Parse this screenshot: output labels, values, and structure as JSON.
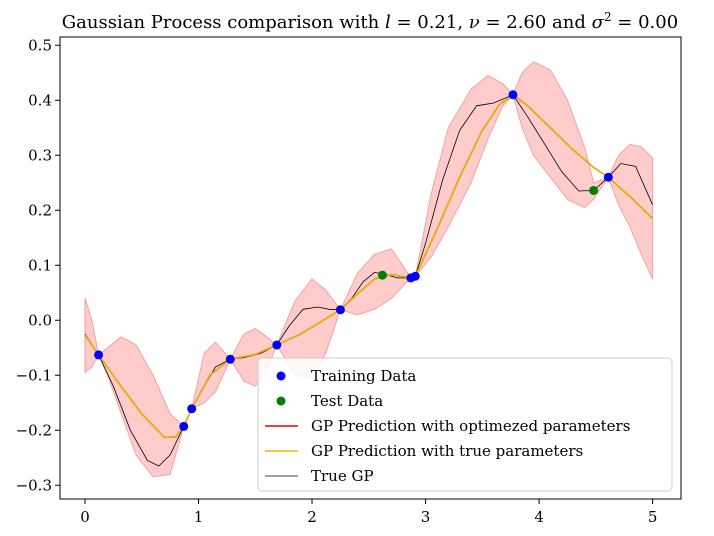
{
  "chart_data": {
    "type": "line",
    "title": "Gaussian Process comparison with l = 0.21, ν = 2.60 and σ² = 0.00",
    "title_parts": {
      "prefix": "Gaussian Process comparison with ",
      "l_symbol": "l",
      "l_value": " = 0.21, ",
      "nu_symbol": "ν",
      "nu_value": " = 2.60 and ",
      "sigma_symbol": "σ",
      "sigma_sup": "2",
      "sigma_value": " = 0.00"
    },
    "xlabel": "",
    "ylabel": "",
    "xlim": [
      -0.22,
      5.25
    ],
    "ylim": [
      -0.325,
      0.515
    ],
    "xticks": [
      0,
      1,
      2,
      3,
      4,
      5
    ],
    "yticks": [
      -0.3,
      -0.2,
      -0.1,
      0.0,
      0.1,
      0.2,
      0.3,
      0.4,
      0.5
    ],
    "ytick_labels": [
      "−0.3",
      "−0.2",
      "−0.1",
      "0.0",
      "0.1",
      "0.2",
      "0.3",
      "0.4",
      "0.5"
    ],
    "grid": false,
    "legend_position": "lower-right",
    "colors": {
      "training": "#0000ff",
      "test": "#008000",
      "optimized": "#dd0000",
      "true_params": "#e6b800",
      "true_gp": "#000000",
      "band": "#ffcccc",
      "band_edge": "#f5a0a0"
    },
    "series": [
      {
        "name": "Training Data",
        "kind": "scatter",
        "x": [
          0.12,
          0.87,
          0.94,
          1.28,
          1.69,
          2.25,
          2.87,
          2.91,
          3.77,
          4.61
        ],
        "y": [
          -0.063,
          -0.193,
          -0.161,
          -0.071,
          -0.045,
          0.019,
          0.077,
          0.08,
          0.41,
          0.26
        ]
      },
      {
        "name": "Test Data",
        "kind": "scatter",
        "x": [
          2.62,
          4.48
        ],
        "y": [
          0.082,
          0.236
        ]
      },
      {
        "name": "GP Prediction with optimezed parameters",
        "kind": "line",
        "x": [
          0,
          0.12,
          0.3,
          0.5,
          0.7,
          0.8,
          0.87,
          0.94,
          1.1,
          1.28,
          1.5,
          1.69,
          1.9,
          2.1,
          2.25,
          2.4,
          2.55,
          2.7,
          2.87,
          2.91,
          3.1,
          3.3,
          3.5,
          3.65,
          3.77,
          3.9,
          4.1,
          4.3,
          4.48,
          4.61,
          4.8,
          5.0
        ],
        "y": [
          -0.027,
          -0.063,
          -0.115,
          -0.17,
          -0.213,
          -0.212,
          -0.193,
          -0.161,
          -0.1,
          -0.071,
          -0.062,
          -0.045,
          -0.025,
          0.0,
          0.019,
          0.048,
          0.075,
          0.083,
          0.077,
          0.08,
          0.165,
          0.26,
          0.345,
          0.392,
          0.41,
          0.39,
          0.35,
          0.31,
          0.278,
          0.26,
          0.225,
          0.185
        ]
      },
      {
        "name": "GP Prediction with true parameters",
        "kind": "line",
        "x": [
          0,
          0.12,
          0.3,
          0.5,
          0.7,
          0.8,
          0.87,
          0.94,
          1.1,
          1.28,
          1.5,
          1.69,
          1.9,
          2.1,
          2.25,
          2.4,
          2.55,
          2.7,
          2.87,
          2.91,
          3.1,
          3.3,
          3.5,
          3.65,
          3.77,
          3.9,
          4.1,
          4.3,
          4.48,
          4.61,
          4.8,
          5.0
        ],
        "y": [
          -0.027,
          -0.063,
          -0.115,
          -0.17,
          -0.213,
          -0.212,
          -0.193,
          -0.161,
          -0.1,
          -0.071,
          -0.062,
          -0.045,
          -0.025,
          0.0,
          0.019,
          0.048,
          0.075,
          0.083,
          0.077,
          0.08,
          0.165,
          0.26,
          0.345,
          0.392,
          0.41,
          0.39,
          0.35,
          0.31,
          0.278,
          0.26,
          0.225,
          0.185
        ]
      },
      {
        "name": "True GP",
        "kind": "line",
        "x": [
          0,
          0.12,
          0.25,
          0.4,
          0.55,
          0.65,
          0.75,
          0.87,
          0.94,
          1.05,
          1.15,
          1.28,
          1.4,
          1.55,
          1.69,
          1.8,
          1.92,
          2.05,
          2.15,
          2.25,
          2.35,
          2.45,
          2.55,
          2.65,
          2.75,
          2.87,
          2.91,
          3.0,
          3.15,
          3.3,
          3.45,
          3.6,
          3.77,
          3.9,
          4.05,
          4.2,
          4.35,
          4.48,
          4.61,
          4.72,
          4.85,
          5.0
        ],
        "y": [
          -0.025,
          -0.063,
          -0.12,
          -0.2,
          -0.255,
          -0.265,
          -0.245,
          -0.193,
          -0.161,
          -0.12,
          -0.085,
          -0.071,
          -0.068,
          -0.06,
          -0.045,
          -0.01,
          0.02,
          0.024,
          0.02,
          0.019,
          0.04,
          0.07,
          0.087,
          0.083,
          0.077,
          0.077,
          0.08,
          0.14,
          0.255,
          0.345,
          0.39,
          0.395,
          0.41,
          0.37,
          0.32,
          0.27,
          0.235,
          0.236,
          0.26,
          0.285,
          0.28,
          0.21
        ]
      },
      {
        "name": "confidence-band",
        "kind": "band",
        "x": [
          0,
          0.06,
          0.12,
          0.2,
          0.32,
          0.45,
          0.6,
          0.75,
          0.87,
          0.94,
          1.05,
          1.15,
          1.28,
          1.4,
          1.5,
          1.6,
          1.69,
          1.85,
          2.0,
          2.12,
          2.25,
          2.4,
          2.55,
          2.7,
          2.87,
          2.91,
          3.05,
          3.2,
          3.4,
          3.55,
          3.68,
          3.77,
          3.85,
          3.95,
          4.1,
          4.25,
          4.4,
          4.48,
          4.61,
          4.7,
          4.8,
          4.9,
          5.0
        ],
        "upper": [
          0.04,
          0.0,
          -0.063,
          -0.05,
          -0.03,
          -0.045,
          -0.1,
          -0.17,
          -0.193,
          -0.161,
          -0.06,
          -0.04,
          -0.071,
          -0.025,
          -0.015,
          -0.03,
          -0.045,
          0.035,
          0.075,
          0.055,
          0.019,
          0.085,
          0.12,
          0.13,
          0.077,
          0.08,
          0.23,
          0.35,
          0.42,
          0.445,
          0.43,
          0.41,
          0.45,
          0.47,
          0.455,
          0.4,
          0.315,
          0.25,
          0.26,
          0.3,
          0.32,
          0.315,
          0.295
        ],
        "lower": [
          -0.095,
          -0.085,
          -0.063,
          -0.1,
          -0.17,
          -0.245,
          -0.285,
          -0.28,
          -0.193,
          -0.161,
          -0.15,
          -0.13,
          -0.071,
          -0.11,
          -0.12,
          -0.09,
          -0.045,
          -0.1,
          -0.105,
          -0.06,
          0.019,
          0.01,
          0.02,
          0.04,
          0.077,
          0.08,
          0.115,
          0.17,
          0.25,
          0.33,
          0.39,
          0.41,
          0.35,
          0.3,
          0.26,
          0.22,
          0.205,
          0.22,
          0.26,
          0.21,
          0.17,
          0.12,
          0.075
        ]
      }
    ]
  }
}
